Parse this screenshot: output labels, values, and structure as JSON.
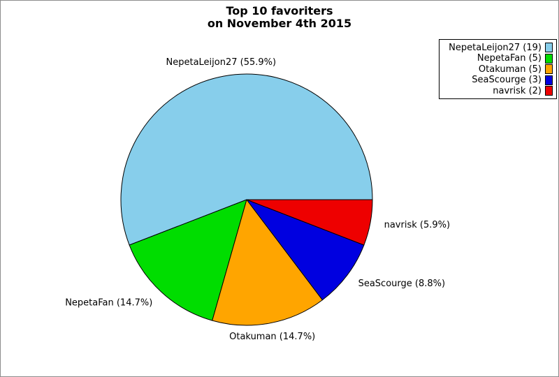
{
  "page": {
    "background": "#ffffff",
    "border_color": "#8c8c8c"
  },
  "title": {
    "line1": "Top 10 favoriters",
    "line2": "on November 4th 2015"
  },
  "chart_data": {
    "type": "pie",
    "title": "Top 10 favoriters on November 4th 2015",
    "total": 34,
    "start_angle_deg": 0,
    "direction": "counterclockwise",
    "edge_color": "#000000",
    "legend_position": "top-right",
    "slices": [
      {
        "label": "NepetaLeijon27",
        "count": 19,
        "percent": 55.9,
        "color": "#87CEEB",
        "callout": "NepetaLeijon27 (55.9%)",
        "legend": "NepetaLeijon27 (19)"
      },
      {
        "label": "NepetaFan",
        "count": 5,
        "percent": 14.7,
        "color": "#00DD00",
        "callout": "NepetaFan (14.7%)",
        "legend": "NepetaFan (5)"
      },
      {
        "label": "Otakuman",
        "count": 5,
        "percent": 14.7,
        "color": "#FFA500",
        "callout": "Otakuman (14.7%)",
        "legend": "Otakuman (5)"
      },
      {
        "label": "SeaScourge",
        "count": 3,
        "percent": 8.8,
        "color": "#0000E0",
        "callout": "SeaScourge (8.8%)",
        "legend": "SeaScourge (3)"
      },
      {
        "label": "navrisk",
        "count": 2,
        "percent": 5.9,
        "color": "#EE0000",
        "callout": "navrisk (5.9%)",
        "legend": "navrisk (2)"
      }
    ]
  }
}
